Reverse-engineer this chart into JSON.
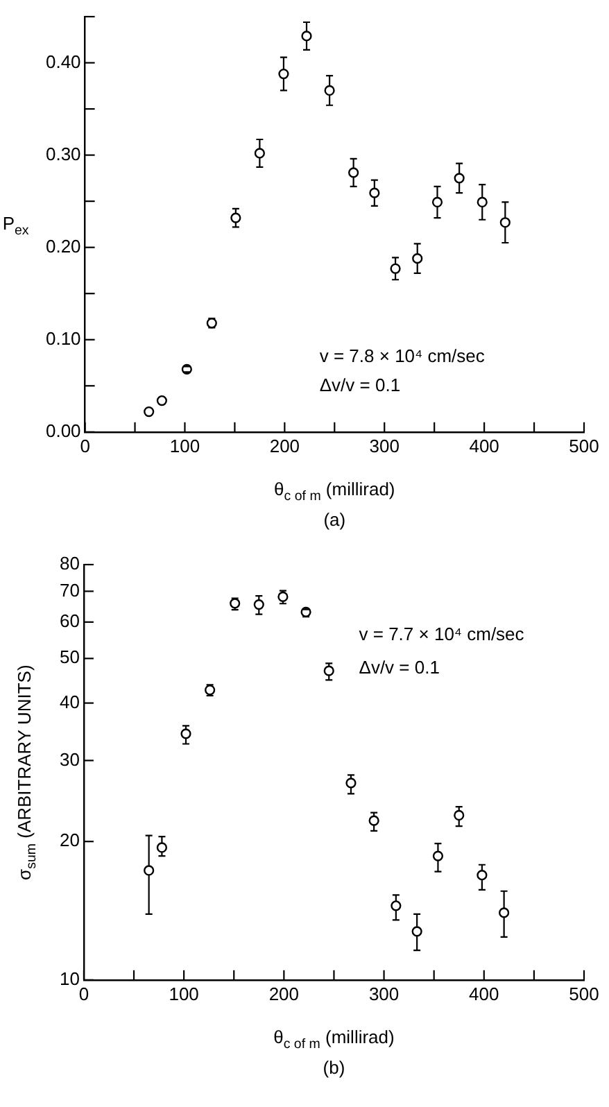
{
  "chart_data": [
    {
      "type": "scatter",
      "xlabel": "θ$_{c of m}$ (millirad)",
      "ylabel": "P$_{ex}$",
      "annotations": [
        "v = 7.8 × 10⁴ cm/sec",
        "Δv/v = 0.1",
        "(a)"
      ],
      "marker": "circle",
      "color": "#000000",
      "xlim": [
        0,
        500
      ],
      "xticks": [
        0,
        {
          "value": 50,
          "label": null
        },
        100,
        {
          "value": 150,
          "label": null
        },
        200,
        {
          "value": 250,
          "label": null
        },
        300,
        {
          "value": 350,
          "label": null
        },
        400,
        {
          "value": 450,
          "label": null
        },
        500
      ],
      "ylim": [
        0,
        0.45
      ],
      "yticks": [
        {
          "value": 0,
          "label": "0.00"
        },
        {
          "value": 0.05,
          "label": null
        },
        {
          "value": 0.1,
          "label": "0.10"
        },
        {
          "value": 0.15,
          "label": null
        },
        {
          "value": 0.2,
          "label": "0.20"
        },
        {
          "value": 0.25,
          "label": null
        },
        {
          "value": 0.3,
          "label": "0.30"
        },
        {
          "value": 0.35,
          "label": null
        },
        {
          "value": 0.4,
          "label": "0.40"
        },
        {
          "value": 0.45,
          "label": null
        }
      ],
      "x": [
        64,
        77,
        102,
        127,
        151,
        175,
        199,
        222,
        245,
        269,
        290,
        311,
        333,
        353,
        375,
        398,
        421
      ],
      "values": [
        0.022,
        0.034,
        0.068,
        0.118,
        0.232,
        0.302,
        0.388,
        0.429,
        0.37,
        0.281,
        0.259,
        0.177,
        0.188,
        0.249,
        0.275,
        0.249,
        0.227
      ],
      "errors": [
        null,
        null,
        [
          0.065,
          0.071
        ],
        [
          0.113,
          0.123
        ],
        [
          0.222,
          0.242
        ],
        [
          0.287,
          0.317
        ],
        [
          0.37,
          0.406
        ],
        [
          0.414,
          0.444
        ],
        [
          0.354,
          0.386
        ],
        [
          0.266,
          0.296
        ],
        [
          0.245,
          0.273
        ],
        [
          0.165,
          0.189
        ],
        [
          0.172,
          0.204
        ],
        [
          0.232,
          0.266
        ],
        [
          0.259,
          0.291
        ],
        [
          0.23,
          0.268
        ],
        [
          0.205,
          0.249
        ]
      ]
    },
    {
      "type": "scatter",
      "xlabel": "θ$_{c of m}$ (millirad)",
      "ylabel": "σ$_{sum}$ (ARBITRARY UNITS)",
      "annotations": [
        "v = 7.7 × 10⁴ cm/sec",
        "Δv/v = 0.1",
        "(b)"
      ],
      "marker": "circle",
      "color": "#000000",
      "log": "y",
      "xlim": [
        0,
        500
      ],
      "xticks": [
        0,
        {
          "value": 50,
          "label": null
        },
        100,
        {
          "value": 150,
          "label": null
        },
        200,
        {
          "value": 250,
          "label": null
        },
        300,
        {
          "value": 350,
          "label": null
        },
        400,
        {
          "value": 450,
          "label": null
        },
        500
      ],
      "ylim": [
        10,
        80
      ],
      "yticks": [
        10,
        20,
        30,
        40,
        50,
        60,
        70,
        80
      ],
      "x": [
        65,
        78,
        102,
        126,
        151,
        175,
        199,
        222,
        245,
        267,
        290,
        312,
        333,
        354,
        375,
        398,
        420
      ],
      "values": [
        17.3,
        19.4,
        34.3,
        42.7,
        65.9,
        65.5,
        68.1,
        63.1,
        47.0,
        26.8,
        22.2,
        14.5,
        12.75,
        18.6,
        22.8,
        16.9,
        14.0
      ],
      "errors": [
        [
          13.9,
          20.6
        ],
        [
          18.6,
          20.5
        ],
        [
          32.6,
          35.7
        ],
        [
          41.5,
          43.8
        ],
        [
          63.8,
          67.6
        ],
        [
          62.4,
          68.4
        ],
        [
          65.8,
          70.2
        ],
        [
          61.6,
          63.9
        ],
        [
          44.9,
          48.8
        ],
        [
          25.4,
          27.9
        ],
        [
          21.1,
          23.1
        ],
        [
          13.5,
          15.3
        ],
        [
          11.6,
          13.9
        ],
        [
          17.2,
          19.8
        ],
        [
          21.6,
          23.8
        ],
        [
          15.7,
          17.8
        ],
        [
          12.4,
          15.6
        ]
      ]
    }
  ]
}
